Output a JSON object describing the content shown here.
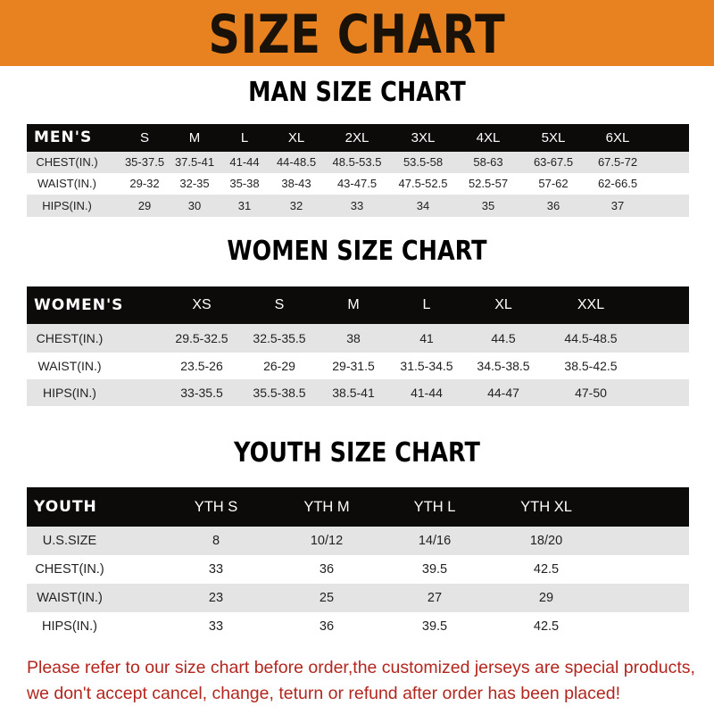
{
  "banner": {
    "title": "SIZE CHART",
    "color": "#e8811f"
  },
  "men": {
    "title": "MAN SIZE CHART",
    "headers": [
      "MEN'S",
      "S",
      "M",
      "L",
      "XL",
      "2XL",
      "3XL",
      "4XL",
      "5XL",
      "6XL"
    ],
    "rows": [
      [
        "CHEST(IN.)",
        "35-37.5",
        "37.5-41",
        "41-44",
        "44-48.5",
        "48.5-53.5",
        "53.5-58",
        "58-63",
        "63-67.5",
        "67.5-72"
      ],
      [
        "WAIST(IN.)",
        "29-32",
        "32-35",
        "35-38",
        "38-43",
        "43-47.5",
        "47.5-52.5",
        "52.5-57",
        "57-62",
        "62-66.5"
      ],
      [
        "HIPS(IN.)",
        "29",
        "30",
        "31",
        "32",
        "33",
        "34",
        "35",
        "36",
        "37"
      ]
    ]
  },
  "women": {
    "title": "WOMEN SIZE CHART",
    "headers": [
      "WOMEN'S",
      "XS",
      "S",
      "M",
      "L",
      "XL",
      "XXL"
    ],
    "rows": [
      [
        "CHEST(IN.)",
        "29.5-32.5",
        "32.5-35.5",
        "38",
        "41",
        "44.5",
        "44.5-48.5"
      ],
      [
        "WAIST(IN.)",
        "23.5-26",
        "26-29",
        "29-31.5",
        "31.5-34.5",
        "34.5-38.5",
        "38.5-42.5"
      ],
      [
        "HIPS(IN.)",
        "33-35.5",
        "35.5-38.5",
        "38.5-41",
        "41-44",
        "44-47",
        "47-50"
      ]
    ]
  },
  "youth": {
    "title": "YOUTH SIZE CHART",
    "headers": [
      "YOUTH",
      "YTH S",
      "YTH M",
      "YTH L",
      "YTH XL"
    ],
    "rows": [
      [
        "U.S.SIZE",
        "8",
        "10/12",
        "14/16",
        "18/20"
      ],
      [
        "CHEST(IN.)",
        "33",
        "36",
        "39.5",
        "42.5"
      ],
      [
        "WAIST(IN.)",
        "23",
        "25",
        "27",
        "29"
      ],
      [
        "HIPS(IN.)",
        "33",
        "36",
        "39.5",
        "42.5"
      ]
    ]
  },
  "footer": {
    "line1": "Please refer to our size chart before order,the customized jerseys are special products,",
    "line2": "we don't accept cancel, change, teturn or refund after order has been placed!",
    "color": "#b3261e"
  }
}
